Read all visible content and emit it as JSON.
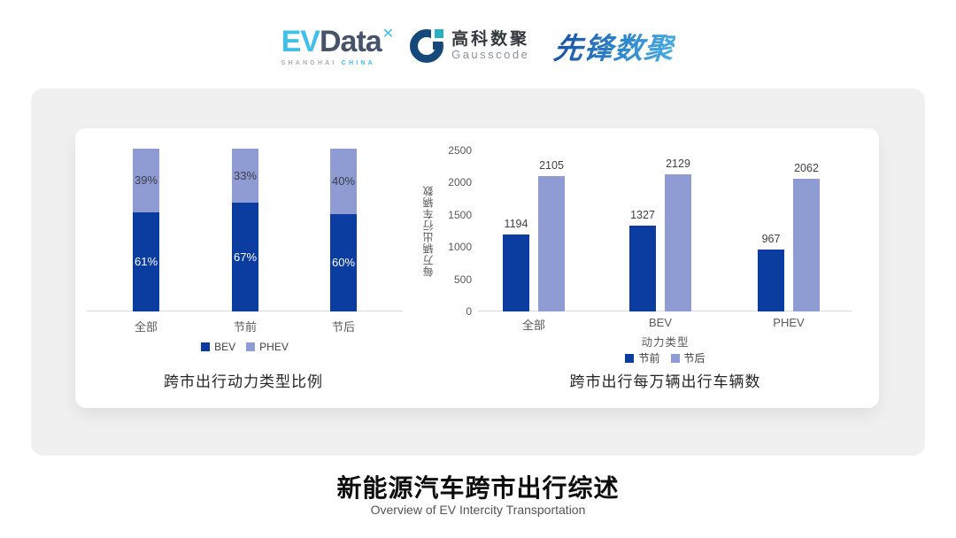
{
  "header": {
    "evdata": {
      "ev": "EV",
      "data": "Data",
      "mark": "✕",
      "sub_left": "SHANGHAI",
      "sub_right": "CHINA"
    },
    "gausscode": {
      "name_cn": "高科数聚",
      "name_en": "Gausscode"
    },
    "pioneer": {
      "name": "先锋数聚"
    }
  },
  "chart_data": [
    {
      "type": "bar",
      "variant": "stacked-percent",
      "title": "跨市出行动力类型比例",
      "categories": [
        "全部",
        "节前",
        "节后"
      ],
      "series": [
        {
          "name": "BEV",
          "color": "#0b3da0",
          "values": [
            61,
            67,
            60
          ]
        },
        {
          "name": "PHEV",
          "color": "#8f9cd3",
          "values": [
            39,
            33,
            40
          ]
        }
      ],
      "value_suffix": "%",
      "ylim": [
        0,
        100
      ],
      "grid": false,
      "legend_position": "bottom"
    },
    {
      "type": "bar",
      "variant": "grouped",
      "title": "跨市出行每万辆出行车辆数",
      "categories": [
        "全部",
        "BEV",
        "PHEV"
      ],
      "series": [
        {
          "name": "节前",
          "color": "#0b3da0",
          "values": [
            1194,
            1327,
            967
          ]
        },
        {
          "name": "节后",
          "color": "#8f9cd3",
          "values": [
            2105,
            2129,
            2062
          ]
        }
      ],
      "xlabel": "动力类型",
      "ylabel": "每万辆出行车辆数",
      "ylim": [
        0,
        2500
      ],
      "yticks": [
        0,
        500,
        1000,
        1500,
        2000,
        2500
      ],
      "grid": false,
      "legend_position": "bottom"
    }
  ],
  "footer": {
    "title": "新能源汽车跨市出行综述",
    "subtitle": "Overview of EV Intercity Transportation"
  }
}
